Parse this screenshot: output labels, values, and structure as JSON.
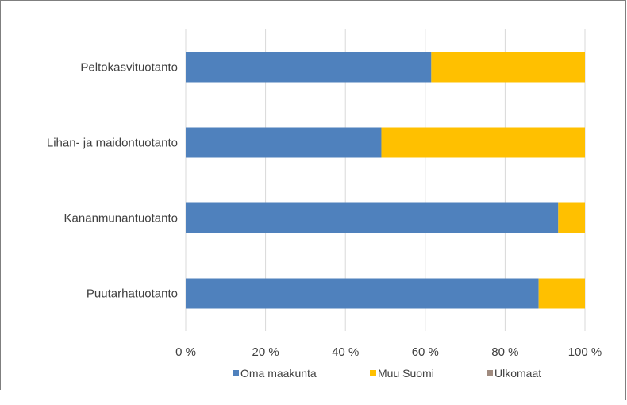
{
  "chart_data": {
    "type": "bar",
    "orientation": "horizontal",
    "stacked": true,
    "percent_stacked": true,
    "categories": [
      "Peltokasvituotanto",
      "Lihan- ja maidontuotanto",
      "Kananmunantuotanto",
      "Puutarhatuotanto"
    ],
    "series": [
      {
        "name": "Oma maakunta",
        "values": [
          61.5,
          49,
          93.3,
          88.4
        ]
      },
      {
        "name": "Muu Suomi",
        "values": [
          38.5,
          51,
          6.7,
          11.6
        ]
      },
      {
        "name": "Ulkomaat",
        "values": [
          0,
          0,
          0,
          0
        ]
      }
    ],
    "xlim": [
      0,
      100
    ],
    "x_ticks": [
      "0 %",
      "20 %",
      "40 %",
      "60 %",
      "80 %",
      "100 %"
    ],
    "grid": "vertical",
    "legend_position": "bottom",
    "colors": {
      "Oma maakunta": "#4f81bd",
      "Muu Suomi": "#ffc000",
      "Ulkomaat": "#a08b7f",
      "grid": "#d9d9d9",
      "text": "#404040"
    }
  }
}
